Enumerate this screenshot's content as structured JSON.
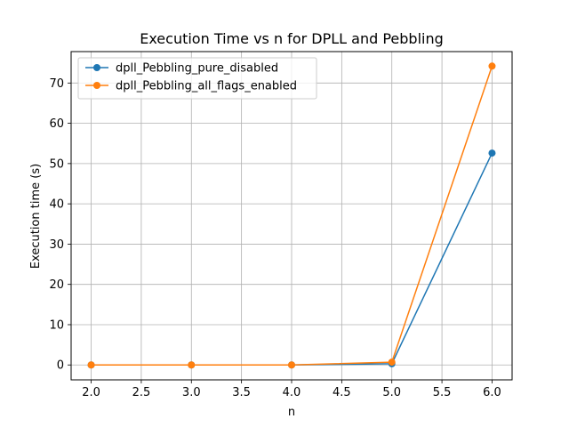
{
  "chart_data": {
    "type": "line",
    "title": "Execution Time vs n for DPLL and Pebbling",
    "xlabel": "n",
    "ylabel": "Execution time (s)",
    "xlim": [
      1.8,
      6.2
    ],
    "ylim": [
      -3.7,
      77.8
    ],
    "xticks": [
      2.0,
      2.5,
      3.0,
      3.5,
      4.0,
      4.5,
      5.0,
      5.5,
      6.0
    ],
    "xtick_labels": [
      "2.0",
      "2.5",
      "3.0",
      "3.5",
      "4.0",
      "4.5",
      "5.0",
      "5.5",
      "6.0"
    ],
    "yticks": [
      0,
      10,
      20,
      30,
      40,
      50,
      60,
      70
    ],
    "ytick_labels": [
      "0",
      "10",
      "20",
      "30",
      "40",
      "50",
      "60",
      "70"
    ],
    "grid": true,
    "legend_position": "upper-left",
    "x": [
      2,
      3,
      4,
      5,
      6
    ],
    "series": [
      {
        "name": "dpll_Pebbling_pure_disabled",
        "color": "#1f77b4",
        "marker": "circle",
        "values": [
          0.0,
          0.0,
          0.0,
          0.3,
          52.6
        ]
      },
      {
        "name": "dpll_Pebbling_all_flags_enabled",
        "color": "#ff7f0e",
        "marker": "circle",
        "values": [
          0.0,
          0.0,
          0.0,
          0.7,
          74.2
        ]
      }
    ]
  }
}
